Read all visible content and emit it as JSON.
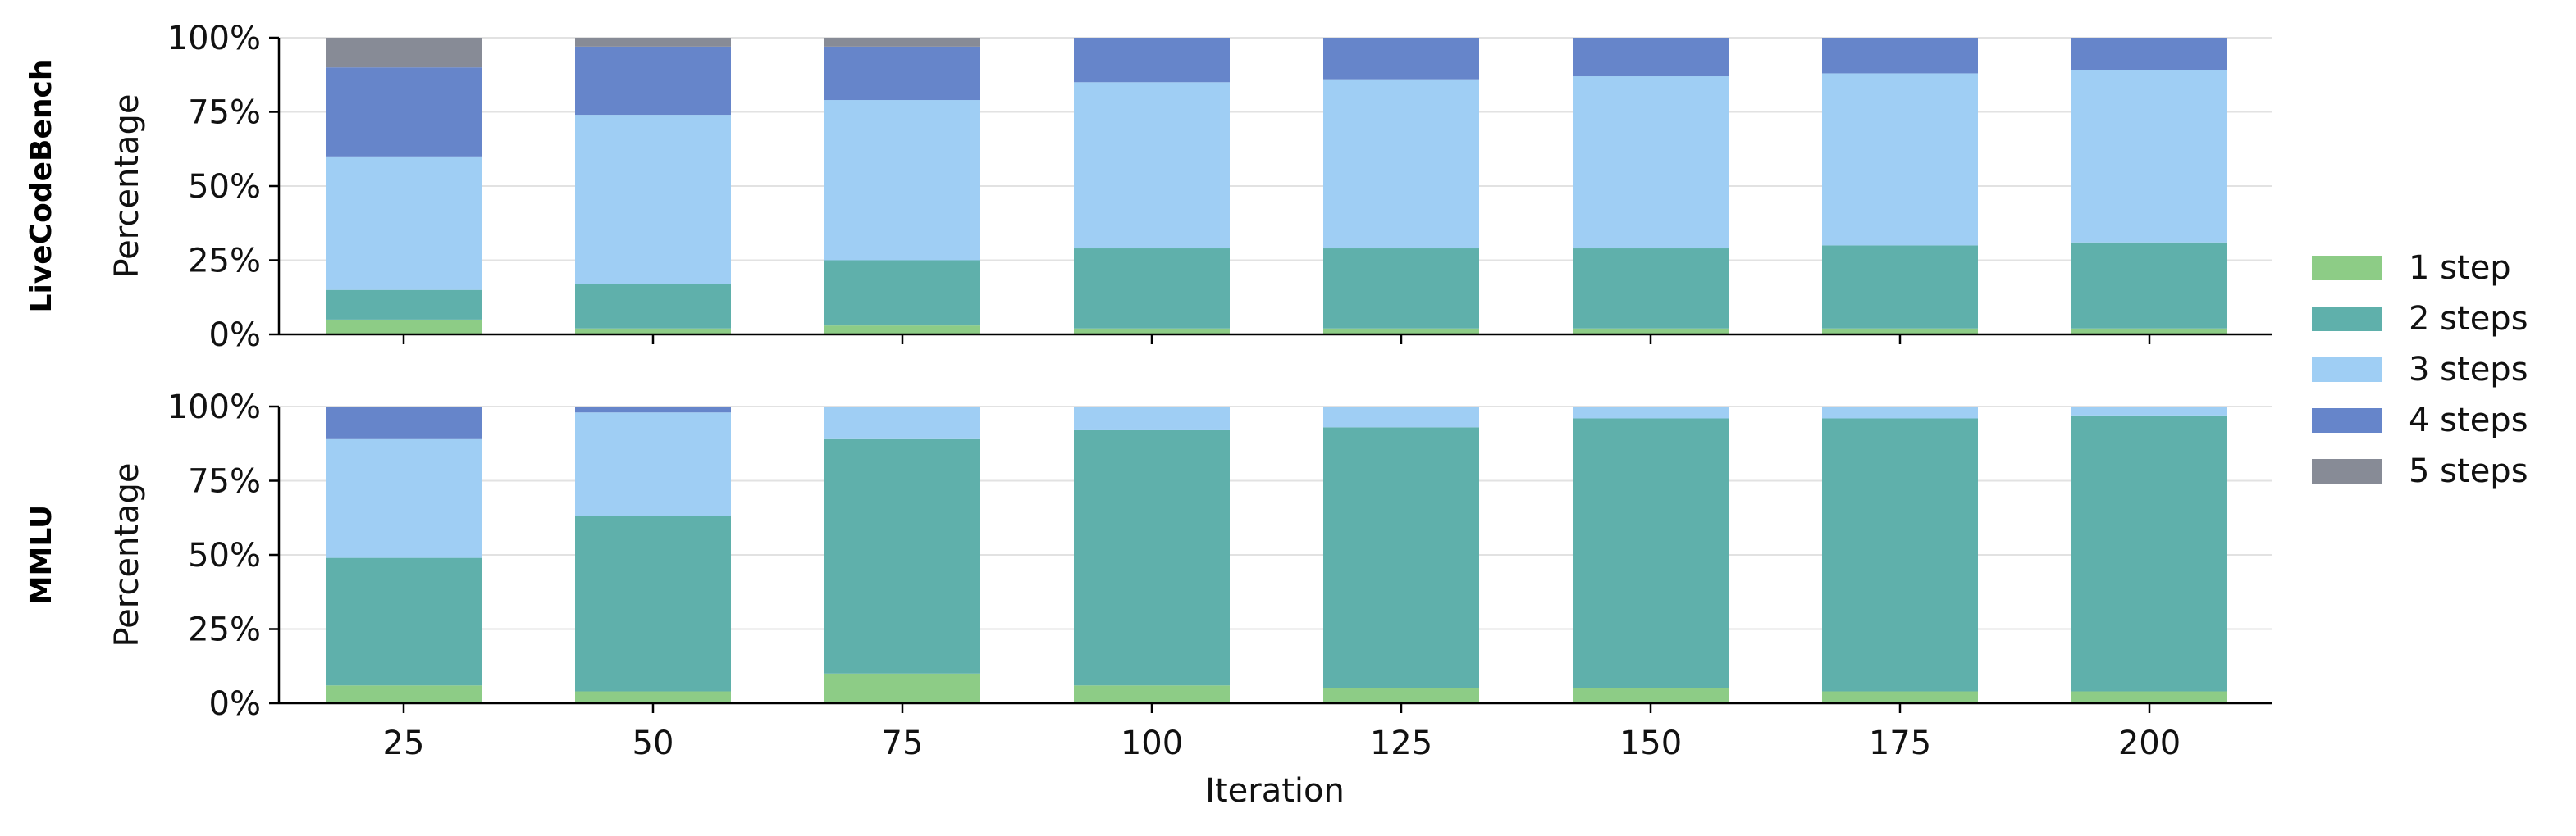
{
  "chart_data": {
    "type": "bar",
    "stacked": true,
    "xlabel": "Iteration",
    "x_ticks": [
      "25",
      "50",
      "75",
      "100",
      "125",
      "150",
      "175",
      "200"
    ],
    "y_ticks": [
      "0%",
      "25%",
      "50%",
      "75%",
      "100%"
    ],
    "ylim": [
      0,
      100
    ],
    "grid": "horizontal",
    "legend_placement": "right",
    "legend": [
      {
        "label": "1 step",
        "color": "#8dcc86"
      },
      {
        "label": "2 steps",
        "color": "#5fb0ab"
      },
      {
        "label": "3 steps",
        "color": "#9fcef4"
      },
      {
        "label": "4 steps",
        "color": "#6685ca"
      },
      {
        "label": "5 steps",
        "color": "#878b96"
      }
    ],
    "panels": [
      {
        "row_label": "LiveCodeBench",
        "ylabel": "Percentage",
        "series": [
          {
            "values": [
              5,
              2,
              3,
              2,
              2,
              2,
              2,
              2
            ]
          },
          {
            "values": [
              10,
              15,
              22,
              27,
              27,
              27,
              28,
              29
            ]
          },
          {
            "values": [
              45,
              57,
              54,
              56,
              57,
              58,
              58,
              58
            ]
          },
          {
            "values": [
              30,
              23,
              18,
              15,
              14,
              13,
              12,
              11
            ]
          },
          {
            "values": [
              10,
              3,
              3,
              0,
              0,
              0,
              0,
              0
            ]
          }
        ]
      },
      {
        "row_label": "MMLU",
        "ylabel": "Percentage",
        "series": [
          {
            "values": [
              6,
              4,
              10,
              6,
              5,
              5,
              4,
              4
            ]
          },
          {
            "values": [
              43,
              59,
              79,
              86,
              88,
              91,
              92,
              93
            ]
          },
          {
            "values": [
              40,
              35,
              11,
              8,
              7,
              4,
              4,
              3
            ]
          },
          {
            "values": [
              11,
              2,
              0,
              0,
              0,
              0,
              0,
              0
            ]
          },
          {
            "values": [
              0,
              0,
              0,
              0,
              0,
              0,
              0,
              0
            ]
          }
        ]
      }
    ]
  }
}
